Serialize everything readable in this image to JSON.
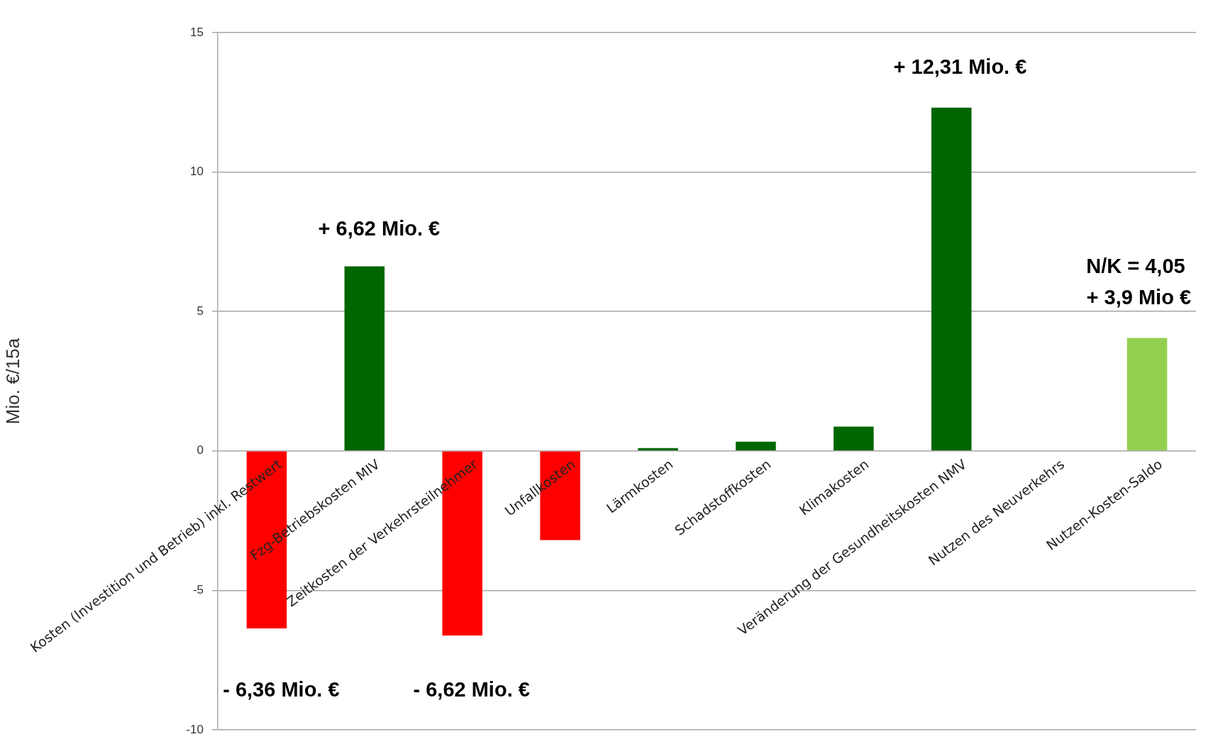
{
  "chart_data": {
    "type": "bar",
    "ylabel": "Mio. €/15a",
    "categories": [
      "Kosten (Investition und Betrieb) inkl. Restwert",
      "Fzg-Betriebskosten MIV",
      "Zeitkosten der Verkehrsteilnehmer",
      "Unfallkosten",
      "Lärmkosten",
      "Schadstoffkosten",
      "Klimakosten",
      "Veränderung der Gesundheitskosten NMV",
      "Nutzen des Neuverkehrs",
      "Nutzen-Kosten-Saldo"
    ],
    "values": [
      -6.36,
      6.62,
      -6.62,
      -3.2,
      0.1,
      0.33,
      0.87,
      12.31,
      0,
      4.05
    ],
    "colors": [
      "#ff0000",
      "#006600",
      "#ff0000",
      "#ff0000",
      "#006600",
      "#006600",
      "#006600",
      "#006600",
      "#006600",
      "#92d050"
    ],
    "ylim": [
      -10,
      15
    ],
    "yticks": [
      -10,
      -5,
      0,
      5,
      10,
      15
    ],
    "grid": "y",
    "legend": false,
    "annotations": [
      "- 6,36 Mio. €",
      "+ 6,62 Mio. €",
      "- 6,62 Mio. €",
      "+ 12,31 Mio. €",
      "N/K = 4,05",
      "+ 3,9 Mio €"
    ]
  }
}
